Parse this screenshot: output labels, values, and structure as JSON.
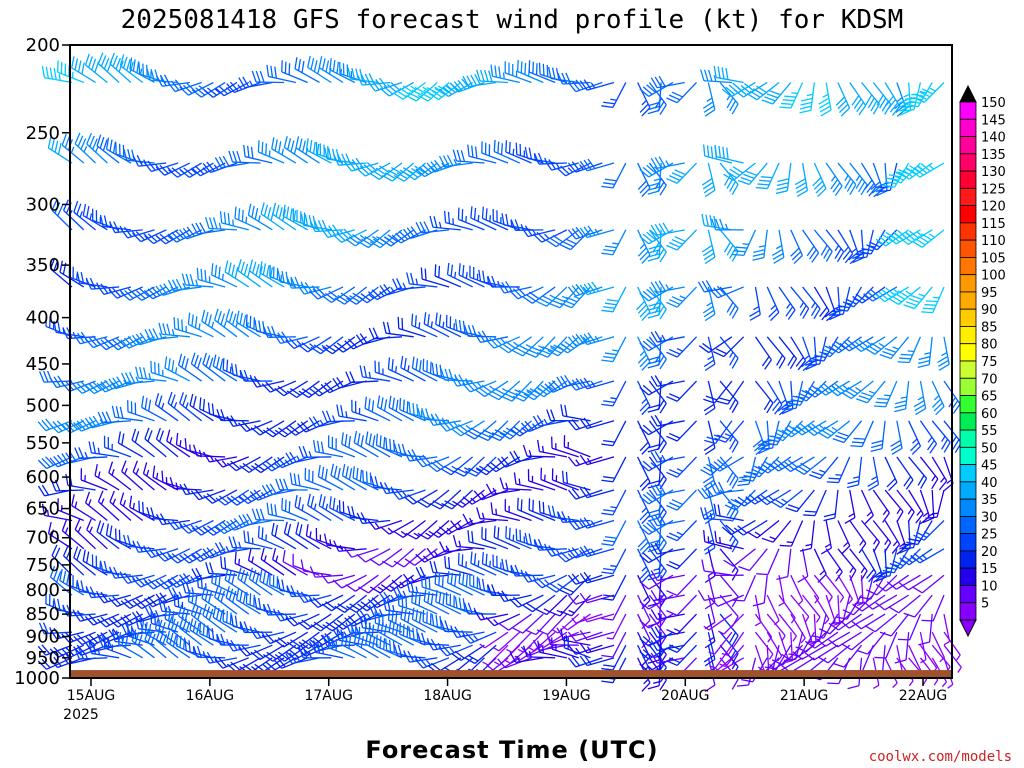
{
  "chart_data": {
    "type": "wind_barb_profile",
    "title": "2025081418 GFS forecast wind profile (kt) for KDSM",
    "xlabel": "Forecast Time (UTC)",
    "ylabel": "",
    "credit": "coolwx.com/models",
    "y_axis": {
      "scale": "log-pressure",
      "inverted": true,
      "ylim": [
        1000,
        200
      ],
      "ticks": [
        200,
        250,
        300,
        350,
        400,
        450,
        500,
        550,
        600,
        650,
        700,
        750,
        800,
        850,
        900,
        950,
        1000
      ]
    },
    "x_axis": {
      "ticks": [
        {
          "label": "15AUG",
          "sublabel": "2025"
        },
        {
          "label": "16AUG",
          "sublabel": ""
        },
        {
          "label": "17AUG",
          "sublabel": ""
        },
        {
          "label": "18AUG",
          "sublabel": ""
        },
        {
          "label": "19AUG",
          "sublabel": ""
        },
        {
          "label": "20AUG",
          "sublabel": ""
        },
        {
          "label": "21AUG",
          "sublabel": ""
        },
        {
          "label": "22AUG",
          "sublabel": ""
        }
      ]
    },
    "colorbar": {
      "unit": "kt",
      "labels": [
        150,
        145,
        140,
        135,
        130,
        125,
        120,
        115,
        110,
        105,
        100,
        95,
        90,
        85,
        80,
        75,
        70,
        65,
        60,
        55,
        50,
        45,
        40,
        35,
        30,
        25,
        20,
        15,
        10,
        5
      ],
      "colors": [
        "#ff00ff",
        "#ff00cc",
        "#ff0099",
        "#ff0066",
        "#ff0033",
        "#ff1a1a",
        "#ff0000",
        "#ff3300",
        "#ff5500",
        "#ff7700",
        "#ff9900",
        "#ffaa00",
        "#ffcc00",
        "#ffee00",
        "#ffff00",
        "#ccff33",
        "#99ff33",
        "#33ff33",
        "#00ee55",
        "#00ffaa",
        "#00ffcc",
        "#00ccff",
        "#00aaff",
        "#0088ff",
        "#0066ff",
        "#0044ff",
        "#0022ee",
        "#2200ee",
        "#6600ff",
        "#8800ff"
      ]
    },
    "terrain_color": "#a0522d",
    "wind_levels_hpa": [
      220,
      270,
      320,
      370,
      420,
      470,
      520,
      570,
      620,
      670,
      720,
      770,
      810,
      850,
      890,
      920,
      950
    ],
    "series": [
      {
        "t": [
          0,
          0.2,
          0.4,
          0.6,
          0.8,
          1.0,
          1.2,
          1.4
        ],
        "dir_deg": [
          290,
          285,
          280,
          275,
          270,
          265,
          260,
          255
        ],
        "speed_kt_200_300": [
          35,
          35,
          30,
          25,
          25,
          20,
          25,
          45
        ],
        "speed_kt_500": [
          25,
          25,
          20,
          15,
          10,
          10,
          15,
          20
        ],
        "speed_kt_850": [
          25,
          30,
          30,
          25,
          15,
          10,
          10,
          10
        ]
      }
    ],
    "surface_pressure_hpa": 980
  }
}
